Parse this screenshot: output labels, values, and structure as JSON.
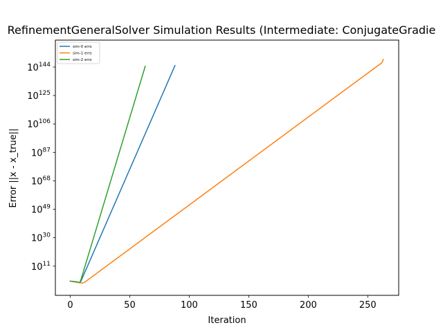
{
  "chart_data": {
    "type": "line",
    "title": "RefinementGeneralSolver Simulation Results (Intermediate: ConjugateGradie",
    "xlabel": "Iteration",
    "ylabel": "Error ||x - x_true||",
    "x_scale": "linear",
    "y_scale": "log",
    "xlim": [
      -12.5,
      276
    ],
    "ylim_log10": [
      -8.5,
      162
    ],
    "x_ticks": [
      0,
      50,
      100,
      150,
      200,
      250
    ],
    "x_tick_labels": [
      "0",
      "50",
      "100",
      "150",
      "200",
      "250"
    ],
    "y_ticks_log10": [
      11,
      30,
      49,
      68,
      87,
      106,
      125,
      144
    ],
    "y_tick_labels": [
      {
        "base": "10",
        "exp": "11"
      },
      {
        "base": "10",
        "exp": "30"
      },
      {
        "base": "10",
        "exp": "49"
      },
      {
        "base": "10",
        "exp": "68"
      },
      {
        "base": "10",
        "exp": "87"
      },
      {
        "base": "10",
        "exp": "106"
      },
      {
        "base": "10",
        "exp": "125"
      },
      {
        "base": "10",
        "exp": "144"
      }
    ],
    "grid": false,
    "legend_position": "top-left",
    "series": [
      {
        "name": "sim-0 errs",
        "color": "#1f77b4",
        "x": [
          0,
          5,
          8,
          9,
          88
        ],
        "log10_y": [
          1,
          0.5,
          0,
          1,
          145
        ]
      },
      {
        "name": "sim-1 errs",
        "color": "#ff7f0e",
        "x": [
          0,
          5,
          10,
          12,
          262,
          263
        ],
        "log10_y": [
          1,
          0.3,
          -0.3,
          0.2,
          147,
          149
        ]
      },
      {
        "name": "sim-2 errs",
        "color": "#2ca02c",
        "x": [
          0,
          5,
          8,
          9,
          63
        ],
        "log10_y": [
          1,
          0.6,
          0,
          2,
          144.5
        ]
      }
    ]
  }
}
